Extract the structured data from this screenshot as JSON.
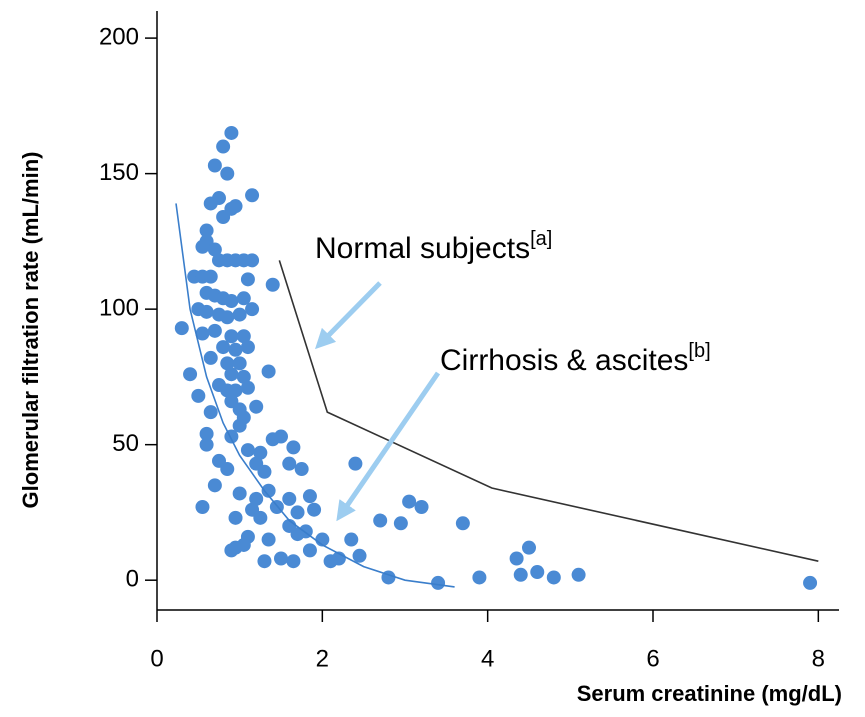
{
  "chart_data": {
    "type": "scatter",
    "x_label": "Serum creatinine (mg/dL)",
    "y_label": "Glomerular filtration rate (mL/min)",
    "xlim": [
      0,
      8.25
    ],
    "ylim": [
      -11,
      210
    ],
    "xticks": [
      0,
      2,
      4,
      6,
      8
    ],
    "yticks": [
      0,
      50,
      100,
      150,
      200
    ],
    "annotations": [
      {
        "text": "Normal subjects",
        "sup": "[a]"
      },
      {
        "text": "Cirrhosis & ascites",
        "sup": "[b]"
      }
    ],
    "series": [
      {
        "type": "scatter",
        "color": "#4a8ad4",
        "x": [
          0.9,
          0.8,
          0.7,
          0.85,
          1.15,
          0.75,
          0.65,
          0.9,
          0.95,
          0.8,
          0.6,
          0.6,
          0.55,
          0.7,
          0.75,
          0.85,
          0.95,
          1.05,
          1.15,
          0.45,
          0.55,
          0.65,
          1.1,
          1.4,
          0.6,
          0.7,
          0.8,
          0.9,
          1.05,
          0.5,
          0.6,
          0.75,
          0.85,
          1.0,
          1.15,
          0.3,
          0.55,
          0.7,
          0.9,
          1.05,
          0.8,
          0.95,
          1.1,
          0.65,
          0.85,
          1.0,
          0.9,
          1.05,
          0.4,
          1.35,
          0.75,
          0.85,
          0.95,
          1.1,
          0.5,
          0.9,
          1.0,
          1.2,
          0.65,
          1.05,
          1.0,
          1.4,
          1.5,
          0.9,
          0.6,
          0.6,
          1.1,
          1.25,
          1.65,
          1.2,
          0.75,
          0.85,
          1.3,
          1.6,
          1.75,
          2.4,
          0.7,
          1.0,
          1.35,
          1.2,
          1.6,
          1.85,
          0.55,
          1.15,
          1.45,
          1.7,
          1.9,
          3.05,
          3.2,
          2.7,
          2.95,
          3.7,
          0.95,
          1.25,
          1.6,
          1.7,
          1.8,
          2.0,
          2.35,
          1.1,
          1.35,
          1.05,
          0.95,
          0.9,
          1.5,
          1.3,
          1.65,
          1.85,
          2.2,
          2.1,
          2.45,
          4.35,
          4.5,
          4.4,
          4.6,
          4.8,
          5.1,
          2.8,
          3.4,
          3.9,
          7.9
        ],
        "values": [
          165,
          160,
          153,
          150,
          142,
          141,
          139,
          137,
          138,
          134,
          129,
          125,
          123,
          122,
          118,
          118,
          118,
          118,
          118,
          112,
          112,
          112,
          111,
          109,
          106,
          105,
          104,
          103,
          104,
          100,
          99,
          98,
          97,
          98,
          100,
          93,
          91,
          92,
          90,
          90,
          86,
          85,
          86,
          82,
          80,
          80,
          76,
          75,
          76,
          77,
          72,
          70,
          70,
          71,
          68,
          66,
          63,
          64,
          62,
          60,
          57,
          52,
          53,
          53,
          54,
          50,
          48,
          47,
          49,
          43,
          44,
          41,
          40,
          43,
          41,
          43,
          35,
          32,
          33,
          30,
          30,
          31,
          27,
          26,
          27,
          25,
          26,
          29,
          27,
          22,
          21,
          21,
          23,
          23,
          20,
          17,
          18,
          15,
          15,
          16,
          15,
          13,
          12,
          11,
          8,
          7,
          7,
          11,
          8,
          7,
          9,
          8,
          12,
          2,
          3,
          1,
          2,
          1,
          -1,
          1,
          -1
        ]
      },
      {
        "type": "line",
        "color": "#3a7ecb",
        "x": [
          0.23,
          0.4,
          0.6,
          0.8,
          1.0,
          1.3,
          1.6,
          2.0,
          2.5,
          3.0,
          3.6
        ],
        "values": [
          139,
          100,
          75,
          58,
          46,
          33,
          22,
          13,
          5,
          0,
          -2.5
        ]
      },
      {
        "type": "line",
        "color": "#333333",
        "x": [
          1.48,
          2.06,
          4.05,
          8.0
        ],
        "values": [
          118,
          62,
          34,
          7
        ]
      }
    ]
  }
}
